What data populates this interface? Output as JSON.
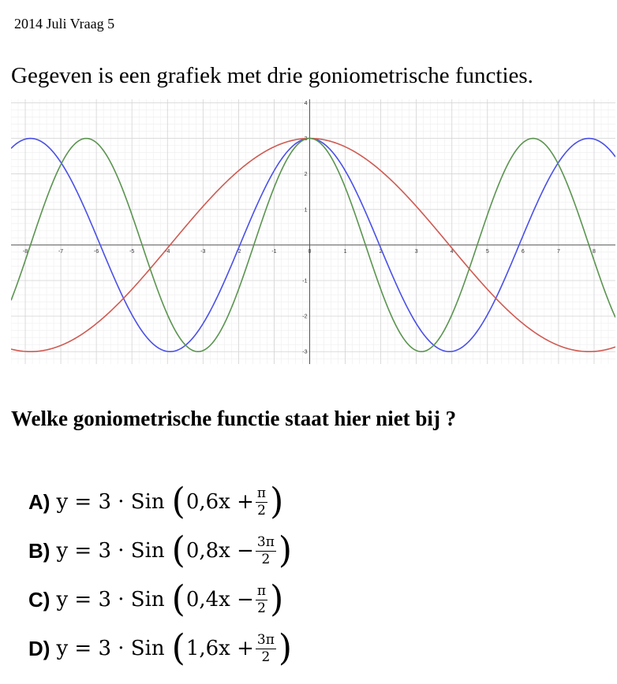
{
  "header": {
    "title": "2014 Juli Vraag 5"
  },
  "intro": {
    "text": "Gegeven is een grafiek met drie goniometrische functies."
  },
  "chart_data": {
    "type": "line",
    "xlim": [
      -8.4,
      8.6
    ],
    "ylim": [
      -3.35,
      4.1
    ],
    "x_ticks": [
      "-8",
      "-7",
      "-6",
      "-5",
      "-4",
      "-3",
      "-2",
      "-1",
      "0",
      "1",
      "2",
      "3",
      "4",
      "5",
      "6",
      "7",
      "8"
    ],
    "y_ticks": [
      "-3",
      "-2",
      "-1",
      "1",
      "2",
      "3",
      "4"
    ],
    "grid": true,
    "series": [
      {
        "color": "#4a50e8",
        "amplitude": 3,
        "b": 0.8,
        "c": 1.5707963
      },
      {
        "color": "#cf5a52",
        "amplitude": 3,
        "b": 0.4,
        "c": 1.5707963
      },
      {
        "color": "#5b9450",
        "amplitude": 3,
        "b": 1.0,
        "c": 1.5707963
      }
    ]
  },
  "question": {
    "text": "Welke goniometrische functie staat hier niet bij ?"
  },
  "options": [
    {
      "letter": "A)",
      "lhs": "y = 3 · Sin",
      "inner": "0,6x +",
      "num": "π",
      "den": "2"
    },
    {
      "letter": "B)",
      "lhs": "y = 3 · Sin",
      "inner": "0,8x −",
      "num": "3π",
      "den": "2"
    },
    {
      "letter": "C)",
      "lhs": "y = 3 · Sin",
      "inner": "0,4x −",
      "num": "π",
      "den": "2"
    },
    {
      "letter": "D)",
      "lhs": "y = 3 · Sin",
      "inner": "1,6x +",
      "num": "3π",
      "den": "2"
    }
  ],
  "paren": {
    "open": "(",
    "close": ")"
  }
}
